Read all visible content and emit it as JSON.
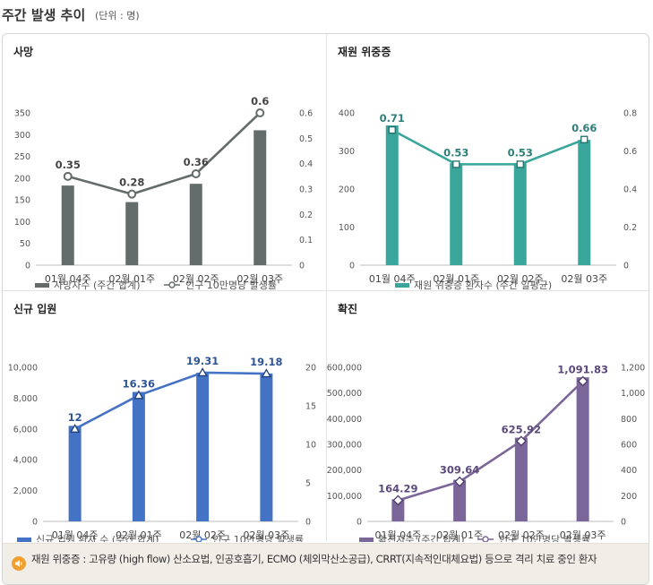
{
  "header": {
    "title": "주간 발생 추이",
    "unit": "(단위 : 명)"
  },
  "footnote": {
    "text": "재원 위중증 : 고유량 (high flow) 산소요법, 인공호흡기, ECMO (체외막산소공급), CRRT(지속적인대체요법) 등으로 격리 치료 중인 환자",
    "icon": "speaker-icon"
  },
  "chart_data": [
    {
      "type": "bar+line",
      "title": "사망",
      "categories": [
        "01월 04주",
        "02월 01주",
        "02월 02주",
        "02월 03주"
      ],
      "bar_series": {
        "name": "사망자수 (주간 합계)",
        "values": [
          183,
          145,
          187,
          310
        ],
        "color": "#646b6b"
      },
      "line_series": {
        "name": "인구 10만명당 발생률",
        "values": [
          0.35,
          0.28,
          0.36,
          0.6
        ],
        "labels": [
          "0.35",
          "0.28",
          "0.36",
          "0.6"
        ],
        "color": "#646b6b"
      },
      "y_left": {
        "min": 0,
        "max": 350,
        "ticks": [
          "0",
          "50",
          "100",
          "150",
          "200",
          "250",
          "300",
          "350"
        ]
      },
      "y_right": {
        "min": 0,
        "max": 0.6,
        "ticks": [
          "0",
          "0.1",
          "0.2",
          "0.3",
          "0.4",
          "0.5",
          "0.6"
        ]
      },
      "label_color": "#444444",
      "legend_placement": "bottom"
    },
    {
      "type": "bar+line",
      "title": "재원 위중증",
      "categories": [
        "01월 04주",
        "02월 01주",
        "02월 02주",
        "02월 03주"
      ],
      "bar_series": {
        "name": "재원 위중증 환자수 (주간 일평균)",
        "values": [
          367,
          268,
          268,
          329
        ],
        "color": "#3aa59b"
      },
      "line_series": {
        "name": "인구 10만명당 발생률",
        "values": [
          0.71,
          0.53,
          0.53,
          0.66
        ],
        "labels": [
          "0.71",
          "0.53",
          "0.53",
          "0.66"
        ],
        "color": "#3aa59b"
      },
      "y_left": {
        "min": 0,
        "max": 400,
        "ticks": [
          "0",
          "100",
          "200",
          "300",
          "400"
        ]
      },
      "y_right": {
        "min": 0,
        "max": 0.8,
        "ticks": [
          "0",
          "0.2",
          "0.4",
          "0.6",
          "0.8"
        ]
      },
      "label_color": "#2e7f7a",
      "legend_placement": "bottom"
    },
    {
      "type": "bar+line",
      "title": "신규 입원",
      "categories": [
        "01월 04주",
        "02월 01주",
        "02월 02주",
        "02월 03주"
      ],
      "bar_series": {
        "name": "신규 입원 환자 수 (주간 합계)",
        "values": [
          6200,
          8400,
          9650,
          9600
        ],
        "color": "#4472c4"
      },
      "line_series": {
        "name": "인구 10만명당 발생률",
        "values": [
          12,
          16.36,
          19.31,
          19.18
        ],
        "labels": [
          "12",
          "16.36",
          "19.31",
          "19.18"
        ],
        "color": "#4472c4"
      },
      "y_left": {
        "min": 0,
        "max": 10000,
        "ticks": [
          "0",
          "2,000",
          "4,000",
          "6,000",
          "8,000",
          "10,000"
        ]
      },
      "y_right": {
        "min": 0,
        "max": 20,
        "ticks": [
          "0",
          "5",
          "10",
          "15",
          "20"
        ]
      },
      "label_color": "#2f5597",
      "legend_placement": "bottom"
    },
    {
      "type": "bar+line",
      "title": "확진",
      "categories": [
        "01월 04주",
        "02월 01주",
        "02월 02주",
        "02월 03주"
      ],
      "bar_series": {
        "name": "확진자수 (주간 합계)",
        "values": [
          86000,
          162000,
          326000,
          561000
        ],
        "color": "#7b6699"
      },
      "line_series": {
        "name": "인구 10만명당 발생률",
        "values": [
          164.29,
          309.64,
          625.92,
          1091.83
        ],
        "labels": [
          "164.29",
          "309.64",
          "625.92",
          "1,091.83"
        ],
        "color": "#7b6699"
      },
      "y_left": {
        "min": 0,
        "max": 600000,
        "ticks": [
          "0",
          "100,000",
          "200,000",
          "300,000",
          "400,000",
          "500,000",
          "600,000"
        ]
      },
      "y_right": {
        "min": 0,
        "max": 1200,
        "ticks": [
          "0",
          "200",
          "400",
          "600",
          "800",
          "1,000",
          "1,200"
        ]
      },
      "label_color": "#5c4a7d",
      "legend_placement": "bottom"
    }
  ]
}
